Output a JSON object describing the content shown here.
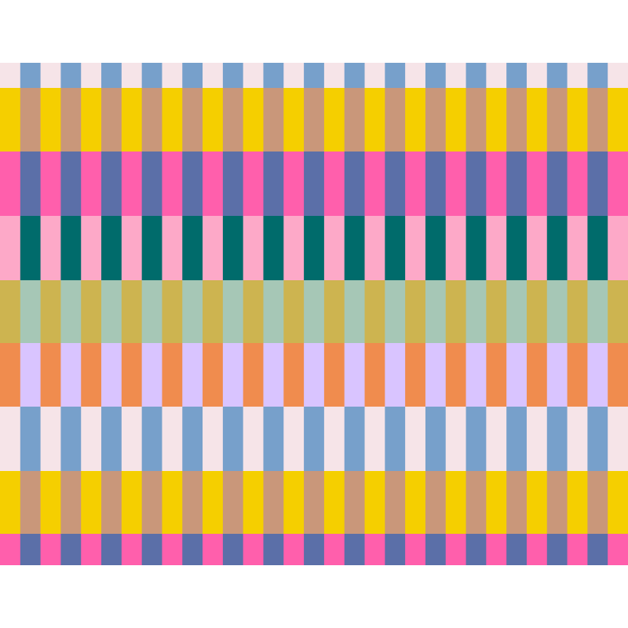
{
  "pattern": {
    "rows": [
      {
        "colors": [
          "#f6e4e8",
          "#77a0cb"
        ]
      },
      {
        "colors": [
          "#f5cf00",
          "#c9977a"
        ]
      },
      {
        "colors": [
          "#ff5fac",
          "#5b6fa8"
        ]
      },
      {
        "colors": [
          "#fda9c8",
          "#006b6b"
        ]
      },
      {
        "colors": [
          "#cdb450",
          "#a6c7b6"
        ]
      },
      {
        "colors": [
          "#f08c4e",
          "#d9c4ff"
        ]
      },
      {
        "colors": [
          "#f6e4e8",
          "#77a0cb"
        ]
      },
      {
        "colors": [
          "#f5cf00",
          "#c9977a"
        ]
      },
      {
        "colors": [
          "#ff5fac",
          "#5b6fa8"
        ]
      }
    ]
  }
}
